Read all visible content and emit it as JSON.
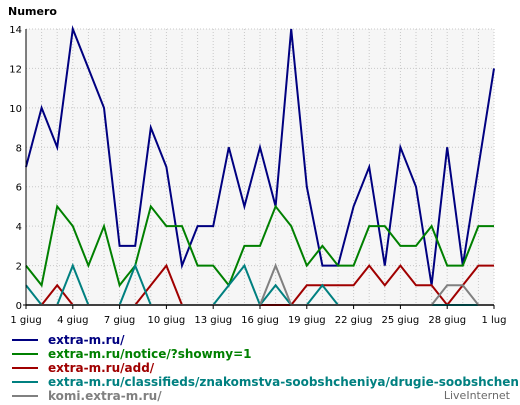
{
  "chart_data": {
    "type": "line",
    "ylabel": "Numero",
    "ylim": [
      0,
      14
    ],
    "yticks": [
      0,
      2,
      4,
      6,
      8,
      10,
      12,
      14
    ],
    "grid": true,
    "x_tick_labels": [
      "1 giug",
      "4 giug",
      "7 giug",
      "10 giug",
      "13 giug",
      "16 giug",
      "19 giug",
      "22 giug",
      "25 giug",
      "28 giug",
      "1 lug"
    ],
    "x_tick_index": [
      0,
      3,
      6,
      9,
      12,
      15,
      18,
      21,
      24,
      27,
      30
    ],
    "series": [
      {
        "name": "extra-m.ru/",
        "color": "#000080",
        "values": [
          7,
          10,
          8,
          14,
          12,
          10,
          3,
          3,
          9,
          7,
          2,
          4,
          4,
          8,
          5,
          8,
          5,
          14,
          6,
          2,
          2,
          5,
          7,
          2,
          8,
          6,
          1,
          8,
          2,
          7,
          12
        ]
      },
      {
        "name": "extra-m.ru/notice/?showmy=1",
        "color": "#008000",
        "values": [
          2,
          1,
          5,
          4,
          2,
          4,
          1,
          2,
          5,
          4,
          4,
          2,
          2,
          1,
          3,
          3,
          5,
          4,
          2,
          3,
          2,
          2,
          4,
          4,
          3,
          3,
          4,
          2,
          2,
          4,
          4
        ]
      },
      {
        "name": "extra-m.ru/add/",
        "color": "#a00000",
        "values": [
          0,
          0,
          1,
          0,
          0,
          0,
          0,
          0,
          1,
          2,
          0,
          0,
          0,
          0,
          0,
          0,
          0,
          0,
          1,
          1,
          1,
          1,
          2,
          1,
          2,
          1,
          1,
          0,
          1,
          2,
          2
        ]
      },
      {
        "name": "extra-m.ru/classifieds/znakomstva-soobshcheniya/drugie-soobshcheniya/l",
        "color": "#008080",
        "values": [
          1,
          0,
          0,
          2,
          0,
          0,
          0,
          2,
          0,
          0,
          0,
          0,
          0,
          1,
          2,
          0,
          1,
          0,
          0,
          1,
          0,
          0,
          0,
          0,
          0,
          0,
          0,
          0,
          0,
          0,
          0
        ]
      },
      {
        "name": "komi.extra-m.ru/",
        "color": "#808080",
        "values": [
          0,
          0,
          0,
          0,
          0,
          0,
          0,
          0,
          0,
          0,
          0,
          0,
          0,
          0,
          0,
          0,
          2,
          0,
          0,
          0,
          0,
          0,
          0,
          0,
          0,
          0,
          0,
          1,
          1,
          0,
          0
        ]
      }
    ]
  },
  "branding": {
    "text": "LiveInternet"
  }
}
